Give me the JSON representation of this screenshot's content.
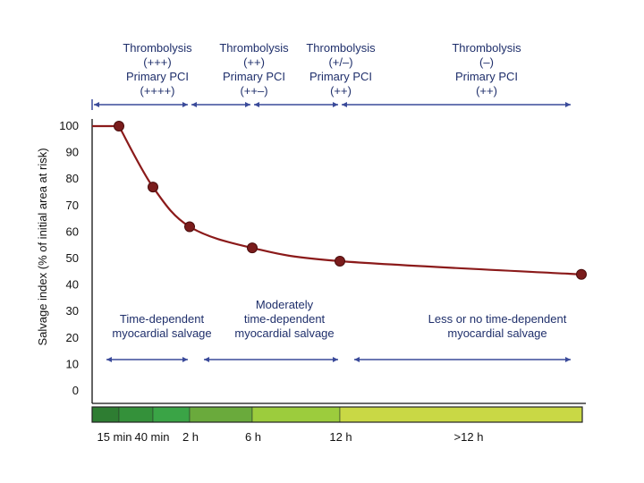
{
  "chart_data": {
    "type": "line",
    "title": "",
    "ylabel": "Salvage index (% of initial area at risk)",
    "xlabel": "",
    "ylim": [
      0,
      100
    ],
    "yticks": [
      0,
      10,
      20,
      30,
      40,
      50,
      60,
      70,
      80,
      90,
      100
    ],
    "x_time_labels": [
      "15 min",
      "40 min",
      "2 h",
      "6 h",
      "12 h",
      ">12 h"
    ],
    "series": [
      {
        "name": "",
        "color": "#8b1a1a",
        "points": [
          {
            "time": "15 min",
            "value": 100
          },
          {
            "time": "40 min",
            "value": 77
          },
          {
            "time": "2 h",
            "value": 62
          },
          {
            "time": "6 h",
            "value": 54
          },
          {
            "time": "12 h",
            "value": 49
          },
          {
            "time": ">12 h",
            "value": 44
          }
        ]
      }
    ],
    "treatment_headers": [
      {
        "lines": [
          "Thrombolysis",
          "(+++)",
          "Primary PCI",
          "(++++)"
        ]
      },
      {
        "lines": [
          "Thrombolysis",
          "(++)",
          "Primary PCI",
          "(++–)"
        ]
      },
      {
        "lines": [
          "Thrombolysis",
          "(+/–)",
          "Primary PCI",
          "(++)"
        ]
      },
      {
        "lines": [
          "Thrombolysis",
          "(–)",
          "Primary PCI",
          "(++)"
        ]
      }
    ],
    "salvage_zones": [
      {
        "lines": [
          "Time-dependent",
          "myocardial salvage"
        ]
      },
      {
        "lines": [
          "Moderately",
          "time-dependent",
          "myocardial salvage"
        ]
      },
      {
        "lines": [
          "Less or no time-dependent",
          "myocardial salvage"
        ]
      }
    ],
    "time_bar_colors": [
      "#2e7d32",
      "#34913a",
      "#3aa446",
      "#6aaa3c",
      "#9ccc3d",
      "#c9d845"
    ],
    "arrow_color": "#3a4a9a",
    "curve_color": "#8b1a1a"
  }
}
